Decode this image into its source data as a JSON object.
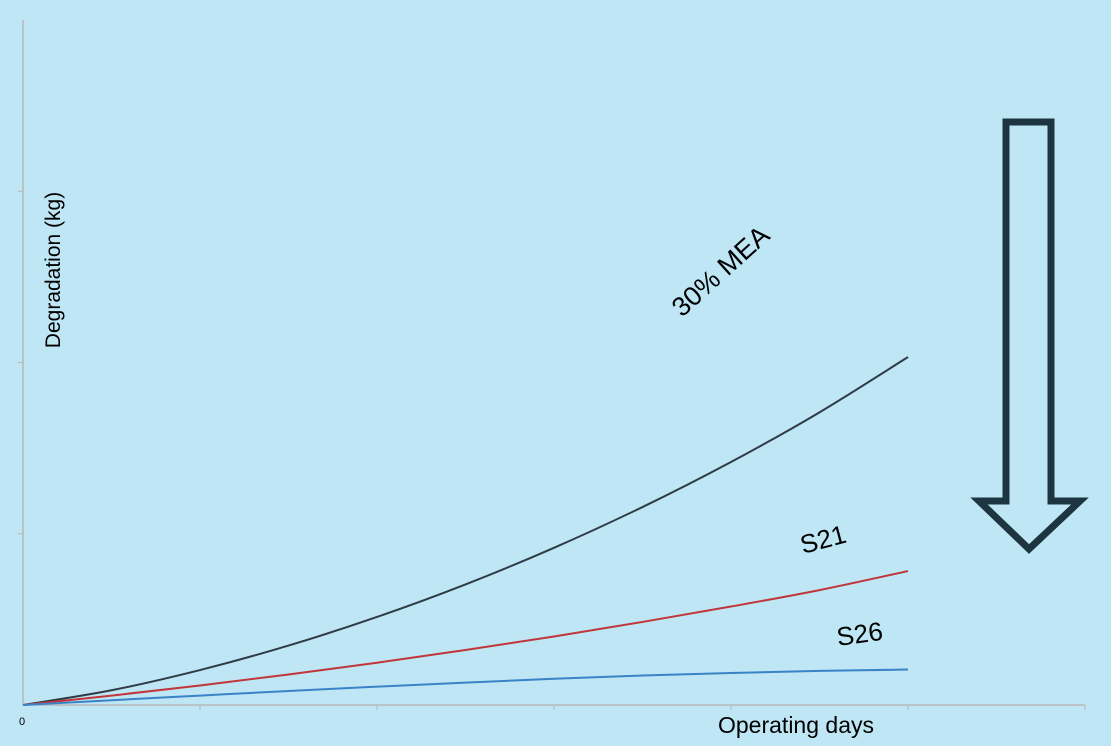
{
  "chart_data": {
    "type": "line",
    "xlabel": "Operating days",
    "ylabel": "Degradation (kg)",
    "x_tick_labels": [
      "0"
    ],
    "xlim": [
      0,
      6
    ],
    "ylim": [
      0,
      4
    ],
    "grid": false,
    "series": [
      {
        "name": "30% MEA",
        "color": "#2f3b45",
        "x": [
          0,
          0.5,
          1,
          1.5,
          2,
          2.5,
          3,
          3.5,
          4,
          4.5,
          5
        ],
        "y": [
          0,
          0.086,
          0.204,
          0.347,
          0.514,
          0.704,
          0.918,
          1.156,
          1.419,
          1.709,
          2.032
        ]
      },
      {
        "name": "S21",
        "color": "#c0363a",
        "x": [
          0,
          0.5,
          1,
          1.5,
          2,
          2.5,
          3,
          3.5,
          4,
          4.5,
          5
        ],
        "y": [
          0,
          0.055,
          0.114,
          0.178,
          0.247,
          0.321,
          0.4,
          0.485,
          0.575,
          0.671,
          0.782
        ]
      },
      {
        "name": "S26",
        "color": "#3a83c6",
        "x": [
          0,
          0.5,
          1,
          1.5,
          2,
          2.5,
          3,
          3.5,
          4,
          4.5,
          5
        ],
        "y": [
          0,
          0.028,
          0.055,
          0.082,
          0.107,
          0.131,
          0.153,
          0.172,
          0.187,
          0.199,
          0.207
        ]
      }
    ],
    "annotations": {
      "arrow": "down"
    }
  },
  "colors": {
    "background": "#bee6f4",
    "axis": "#b8b8b8",
    "arrow": "#1d3540",
    "text": "#000000"
  }
}
